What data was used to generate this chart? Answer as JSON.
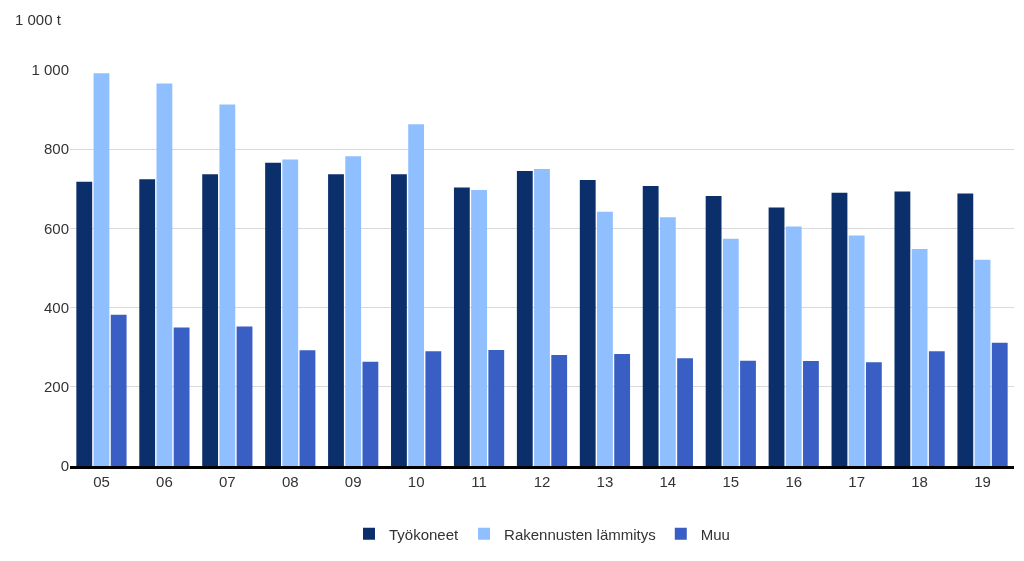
{
  "chart_data": {
    "type": "bar",
    "ylabel": "1 000 t",
    "categories": [
      "05",
      "06",
      "07",
      "08",
      "09",
      "10",
      "11",
      "12",
      "13",
      "14",
      "15",
      "16",
      "17",
      "18",
      "19"
    ],
    "series": [
      {
        "name": "Työkoneet",
        "color": "#0a2f6b",
        "values": [
          718,
          724,
          737,
          766,
          737,
          737,
          703,
          745,
          722,
          707,
          682,
          653,
          690,
          693,
          688
        ]
      },
      {
        "name": "Rakennusten lämmitys",
        "color": "#8fbfff",
        "values": [
          992,
          966,
          913,
          774,
          782,
          863,
          697,
          750,
          642,
          628,
          574,
          605,
          582,
          548,
          521
        ]
      },
      {
        "name": "Muu",
        "color": "#3a5fc4",
        "values": [
          382,
          350,
          352,
          292,
          263,
          290,
          293,
          280,
          283,
          272,
          266,
          265,
          262,
          290,
          311
        ]
      }
    ],
    "ylim": [
      0,
      1000
    ],
    "yticks": [
      0,
      200,
      400,
      600,
      800,
      {
        "value": 1000,
        "label": "1 000"
      }
    ],
    "grid": "y",
    "legend": "bottom"
  }
}
